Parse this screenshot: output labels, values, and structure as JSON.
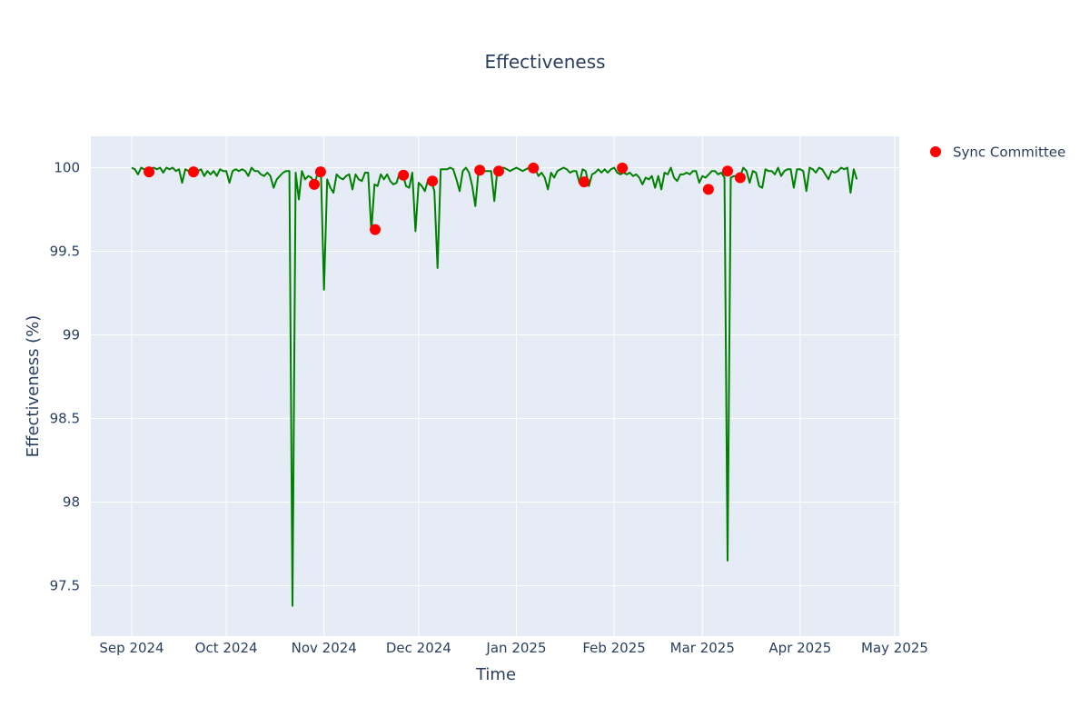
{
  "chart_data": {
    "type": "line",
    "title": "Effectiveness",
    "xlabel": "Time",
    "ylabel": "Effectiveness (%)",
    "ylim": [
      97.2,
      100.18
    ],
    "x_ticks": [
      "Sep 2024",
      "Oct 2024",
      "Nov 2024",
      "Dec 2024",
      "Jan 2025",
      "Feb 2025",
      "Mar 2025",
      "Apr 2025",
      "May 2025"
    ],
    "x_tick_days": [
      0,
      30,
      61,
      91,
      122,
      153,
      181,
      212,
      242
    ],
    "y_ticks": [
      100,
      99.5,
      99,
      98.5,
      98,
      97.5
    ],
    "y_tick_labels": [
      "100",
      "99.5",
      "99",
      "98.5",
      "98",
      "97.5"
    ],
    "grid": true,
    "legend_position": "top-right",
    "x_origin": "2024-09-01",
    "series": [
      {
        "name": "Effectiveness",
        "mode": "lines",
        "color": "#008000",
        "show_in_legend": false,
        "days": [
          0,
          1,
          2,
          3,
          4,
          5,
          6,
          7,
          8,
          9,
          10,
          11,
          12,
          13,
          14,
          15,
          16,
          17,
          18,
          19,
          20,
          21,
          22,
          23,
          24,
          25,
          26,
          27,
          28,
          29,
          30,
          31,
          32,
          33,
          34,
          35,
          36,
          37,
          38,
          39,
          40,
          41,
          42,
          43,
          44,
          45,
          46,
          47,
          48,
          49,
          50,
          51,
          52,
          53,
          54,
          55,
          56,
          57,
          58,
          59,
          60,
          61,
          62,
          63,
          64,
          65,
          66,
          67,
          68,
          69,
          70,
          71,
          72,
          73,
          74,
          75,
          76,
          77,
          78,
          79,
          80,
          81,
          82,
          83,
          84,
          85,
          86,
          87,
          88,
          89,
          90,
          91,
          92,
          93,
          94,
          95,
          96,
          97,
          98,
          99,
          100,
          101,
          102,
          103,
          104,
          105,
          106,
          107,
          108,
          109,
          110,
          111,
          112,
          113,
          114,
          115,
          116,
          117,
          118,
          119,
          120,
          121,
          122,
          123,
          124,
          125,
          126,
          127,
          128,
          129,
          130,
          131,
          132,
          133,
          134,
          135,
          136,
          137,
          138,
          139,
          140,
          141,
          142,
          143,
          144,
          145,
          146,
          147,
          148,
          149,
          150,
          151,
          152,
          153,
          154,
          155,
          156,
          157,
          158,
          159,
          160,
          161,
          162,
          163,
          164,
          165,
          166,
          167,
          168,
          169,
          170,
          171,
          172,
          173,
          174,
          175,
          176,
          177,
          178,
          179,
          180,
          181,
          182,
          183,
          184,
          185,
          186,
          187,
          188,
          189,
          190,
          191,
          192,
          193,
          194,
          195,
          196,
          197,
          198,
          199,
          200,
          201,
          202,
          203,
          204,
          205,
          206,
          207,
          208,
          209,
          210,
          211,
          212,
          213,
          214,
          215,
          216,
          217,
          218,
          219,
          220,
          221,
          222,
          223,
          224,
          225,
          226,
          227,
          228,
          229,
          230
        ],
        "values": [
          100.0,
          99.99,
          99.96,
          100.0,
          99.99,
          99.97,
          99.99,
          100.0,
          99.99,
          100.0,
          99.97,
          100.0,
          99.99,
          100.0,
          99.98,
          99.99,
          99.91,
          99.99,
          99.98,
          99.97,
          99.99,
          99.98,
          99.99,
          99.95,
          99.98,
          99.96,
          99.98,
          99.95,
          99.99,
          99.98,
          99.98,
          99.91,
          99.98,
          99.99,
          99.98,
          99.99,
          99.98,
          99.95,
          100.0,
          99.98,
          99.98,
          99.96,
          99.95,
          99.97,
          99.95,
          99.88,
          99.93,
          99.95,
          99.97,
          99.98,
          99.98,
          97.38,
          99.97,
          99.81,
          99.98,
          99.93,
          99.95,
          99.94,
          99.9,
          99.97,
          99.98,
          99.27,
          99.93,
          99.88,
          99.85,
          99.96,
          99.94,
          99.93,
          99.95,
          99.96,
          99.87,
          99.96,
          99.93,
          99.92,
          99.97,
          99.97,
          99.62,
          99.9,
          99.89,
          99.96,
          99.93,
          99.96,
          99.92,
          99.9,
          99.91,
          99.97,
          99.96,
          99.89,
          99.88,
          99.97,
          99.62,
          99.91,
          99.89,
          99.86,
          99.93,
          99.92,
          99.86,
          99.4,
          99.99,
          99.99,
          99.99,
          100.0,
          99.99,
          99.93,
          99.86,
          99.98,
          100.0,
          99.97,
          99.89,
          99.77,
          99.98,
          99.97,
          99.98,
          99.98,
          99.98,
          99.8,
          99.99,
          99.98,
          100.0,
          99.99,
          99.98,
          99.99,
          100.0,
          99.99,
          99.98,
          99.99,
          100.0,
          99.98,
          99.99,
          99.95,
          99.97,
          99.94,
          99.87,
          99.97,
          99.94,
          99.98,
          99.99,
          100.0,
          99.99,
          99.97,
          99.98,
          99.98,
          99.91,
          99.99,
          99.98,
          99.89,
          99.96,
          99.97,
          99.99,
          99.97,
          99.99,
          99.97,
          99.99,
          100.0,
          99.97,
          99.96,
          99.97,
          99.96,
          99.97,
          99.95,
          99.96,
          99.94,
          99.9,
          99.94,
          99.93,
          99.95,
          99.88,
          99.95,
          99.87,
          99.97,
          99.96,
          100.0,
          99.94,
          99.92,
          99.96,
          99.96,
          99.97,
          99.96,
          99.98,
          99.98,
          99.91,
          99.95,
          99.94,
          99.96,
          99.98,
          99.98,
          99.96,
          99.97,
          99.94,
          97.65,
          99.94,
          99.95,
          99.95,
          99.95,
          100.0,
          99.98,
          99.91,
          99.98,
          99.97,
          99.89,
          99.88,
          99.99,
          99.98,
          99.98,
          99.96,
          100.0,
          99.95,
          99.98,
          99.99,
          99.99,
          99.88,
          99.99,
          99.99,
          99.98,
          99.86,
          100.0,
          99.99,
          99.97,
          100.0,
          99.99,
          99.96,
          99.93,
          99.98,
          99.97,
          99.98,
          100.0,
          99.99,
          100.0,
          99.85,
          99.99,
          99.93,
          99.98
        ]
      },
      {
        "name": "Sync Committee",
        "mode": "markers",
        "color": "#ff0000",
        "show_in_legend": true,
        "days": [
          5.5,
          19.6,
          57.9,
          59.9,
          77.2,
          86.2,
          95.4,
          110.4,
          116.4,
          127.4,
          143.5,
          155.6,
          182.9,
          189.0,
          193.0
        ],
        "values": [
          99.975,
          99.975,
          99.9,
          99.975,
          99.63,
          99.955,
          99.92,
          99.985,
          99.98,
          99.998,
          99.915,
          99.998,
          99.87,
          99.98,
          99.94
        ]
      }
    ]
  },
  "legend": {
    "items": [
      {
        "label": "Sync Committee",
        "color": "#ff0000"
      }
    ]
  }
}
